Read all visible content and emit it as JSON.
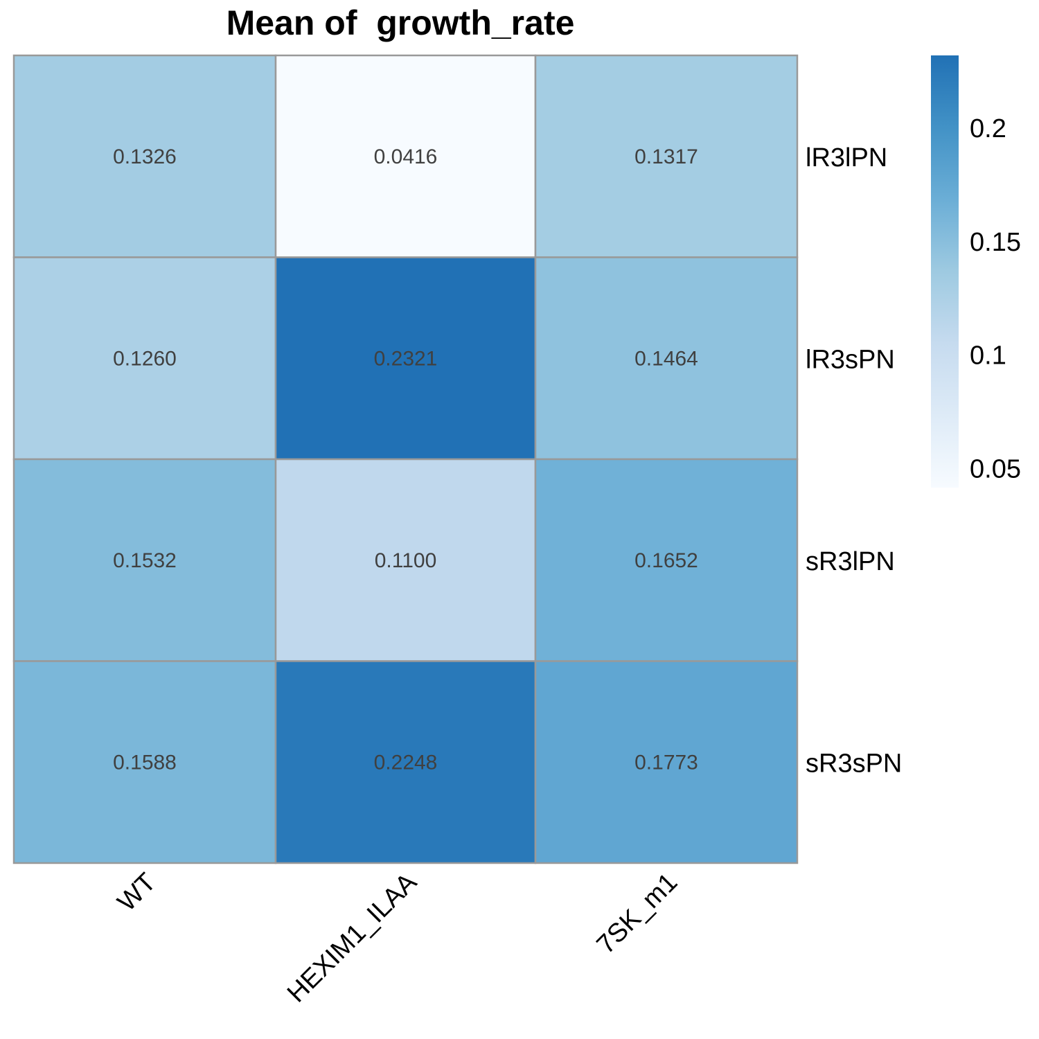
{
  "chart_data": {
    "type": "heatmap",
    "title": "Mean of  growth_rate",
    "columns": [
      "WT",
      "HEXIM1_ILAA",
      "7SK_m1"
    ],
    "rows": [
      "lR3lPN",
      "lR3sPN",
      "sR3lPN",
      "sR3sPN"
    ],
    "values": [
      [
        0.1326,
        0.0416,
        0.1317
      ],
      [
        0.126,
        0.2321,
        0.1464
      ],
      [
        0.1532,
        0.11,
        0.1652
      ],
      [
        0.1588,
        0.2248,
        0.1773
      ]
    ],
    "cell_labels": [
      [
        "0.1326",
        "0.0416",
        "0.1317"
      ],
      [
        "0.1260",
        "0.2321",
        "0.1464"
      ],
      [
        "0.1532",
        "0.1100",
        "0.1652"
      ],
      [
        "0.1588",
        "0.2248",
        "0.1773"
      ]
    ],
    "color_scale": {
      "min": 0.0416,
      "max": 0.2321,
      "colors": [
        "#f7fbff",
        "#deebf7",
        "#c6dbef",
        "#9ecae1",
        "#6baed6",
        "#4292c6",
        "#2171b5"
      ]
    },
    "legend": {
      "ticks": [
        0.05,
        0.1,
        0.15,
        0.2
      ],
      "tick_labels": [
        "0.05",
        "0.1",
        "0.15",
        "0.2"
      ],
      "placement": "right"
    },
    "cell_border_color": "#999999",
    "cell_text_color": "#404040"
  }
}
